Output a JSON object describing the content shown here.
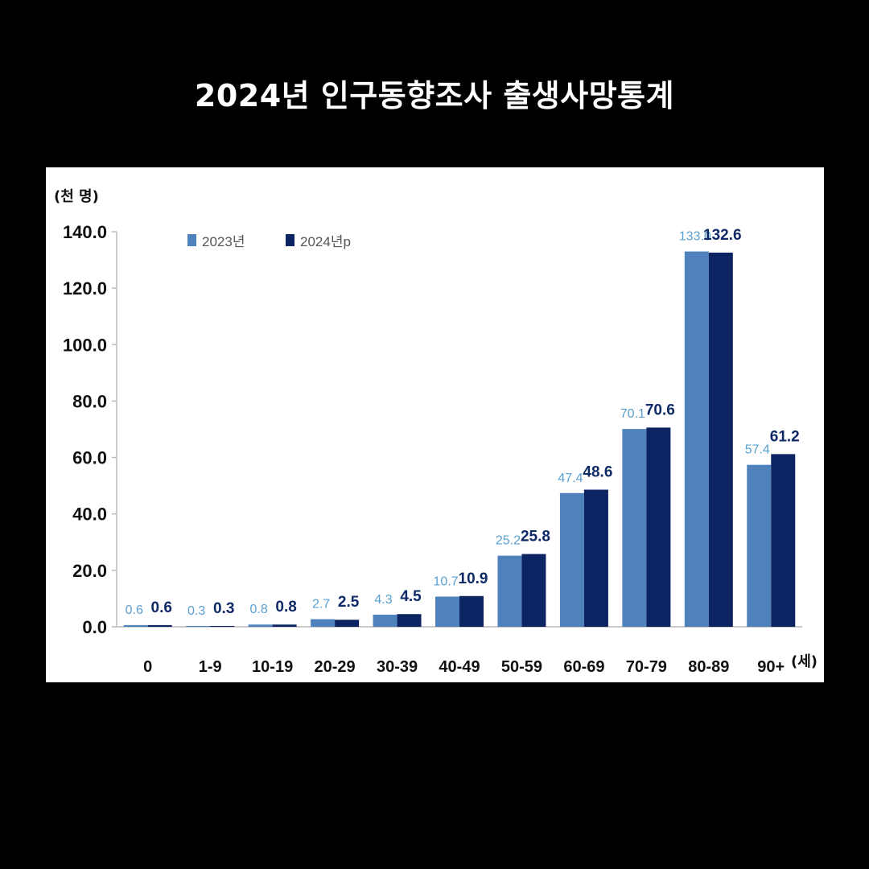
{
  "title": "2024년 인구동향조사 출생사망통계",
  "chart_data": {
    "type": "bar",
    "ylabel": "(천 명)",
    "xlabel": "(세)",
    "ylim": [
      0,
      140
    ],
    "yticks": [
      "0.0",
      "20.0",
      "40.0",
      "60.0",
      "80.0",
      "100.0",
      "120.0",
      "140.0"
    ],
    "categories": [
      "0",
      "1-9",
      "10-19",
      "20-29",
      "30-39",
      "40-49",
      "50-59",
      "60-69",
      "70-79",
      "80-89",
      "90+"
    ],
    "series": [
      {
        "name": "2023년",
        "color": "#4f81bd",
        "values": [
          0.6,
          0.3,
          0.8,
          2.7,
          4.3,
          10.7,
          25.2,
          47.4,
          70.1,
          133.0,
          57.4
        ]
      },
      {
        "name": "2024년p",
        "color": "#0c2461",
        "values": [
          0.6,
          0.3,
          0.8,
          2.5,
          4.5,
          10.9,
          25.8,
          48.6,
          70.6,
          132.6,
          61.2
        ]
      }
    ],
    "legend": "top-left",
    "grid": false
  }
}
